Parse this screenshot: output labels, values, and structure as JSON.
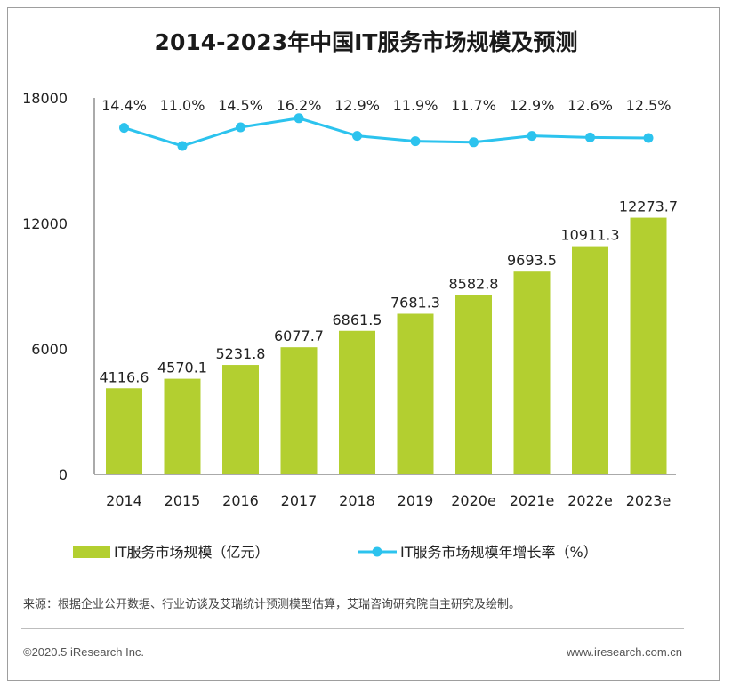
{
  "chart_data": {
    "type": "bar",
    "title": "2014-2023年中国IT服务市场规模及预测",
    "categories": [
      "2014",
      "2015",
      "2016",
      "2017",
      "2018",
      "2019",
      "2020e",
      "2021e",
      "2022e",
      "2023e"
    ],
    "series": [
      {
        "name": "IT服务市场规模（亿元）",
        "type": "bar",
        "values": [
          4116.6,
          4570.1,
          5231.8,
          6077.7,
          6861.5,
          7681.3,
          8582.8,
          9693.5,
          10911.3,
          12273.7
        ],
        "labels": [
          "4116.6",
          "4570.1",
          "5231.8",
          "6077.7",
          "6861.5",
          "7681.3",
          "8582.8",
          "9693.5",
          "10911.3",
          "12273.7"
        ]
      },
      {
        "name": "IT服务市场规模年增长率（%）",
        "type": "line",
        "values": [
          14.4,
          11.0,
          14.5,
          16.2,
          12.9,
          11.9,
          11.7,
          12.9,
          12.6,
          12.5
        ],
        "labels": [
          "14.4%",
          "11.0%",
          "14.5%",
          "16.2%",
          "12.9%",
          "11.9%",
          "11.7%",
          "12.9%",
          "12.6%",
          "12.5%"
        ]
      }
    ],
    "ylim": [
      0,
      18000
    ],
    "yticks": [
      "0",
      "6000",
      "12000",
      "18000"
    ],
    "xlabel": "",
    "ylabel": "",
    "legend_position": "bottom",
    "grid": false,
    "colors": {
      "bar": "#b3cf30",
      "line": "#2cc3ee"
    }
  },
  "footer": {
    "source": "来源：根据企业公开数据、行业访谈及艾瑞统计预测模型估算，艾瑞咨询研究院自主研究及绘制。",
    "copyright": "©2020.5 iResearch Inc.",
    "website": "www.iresearch.com.cn"
  }
}
